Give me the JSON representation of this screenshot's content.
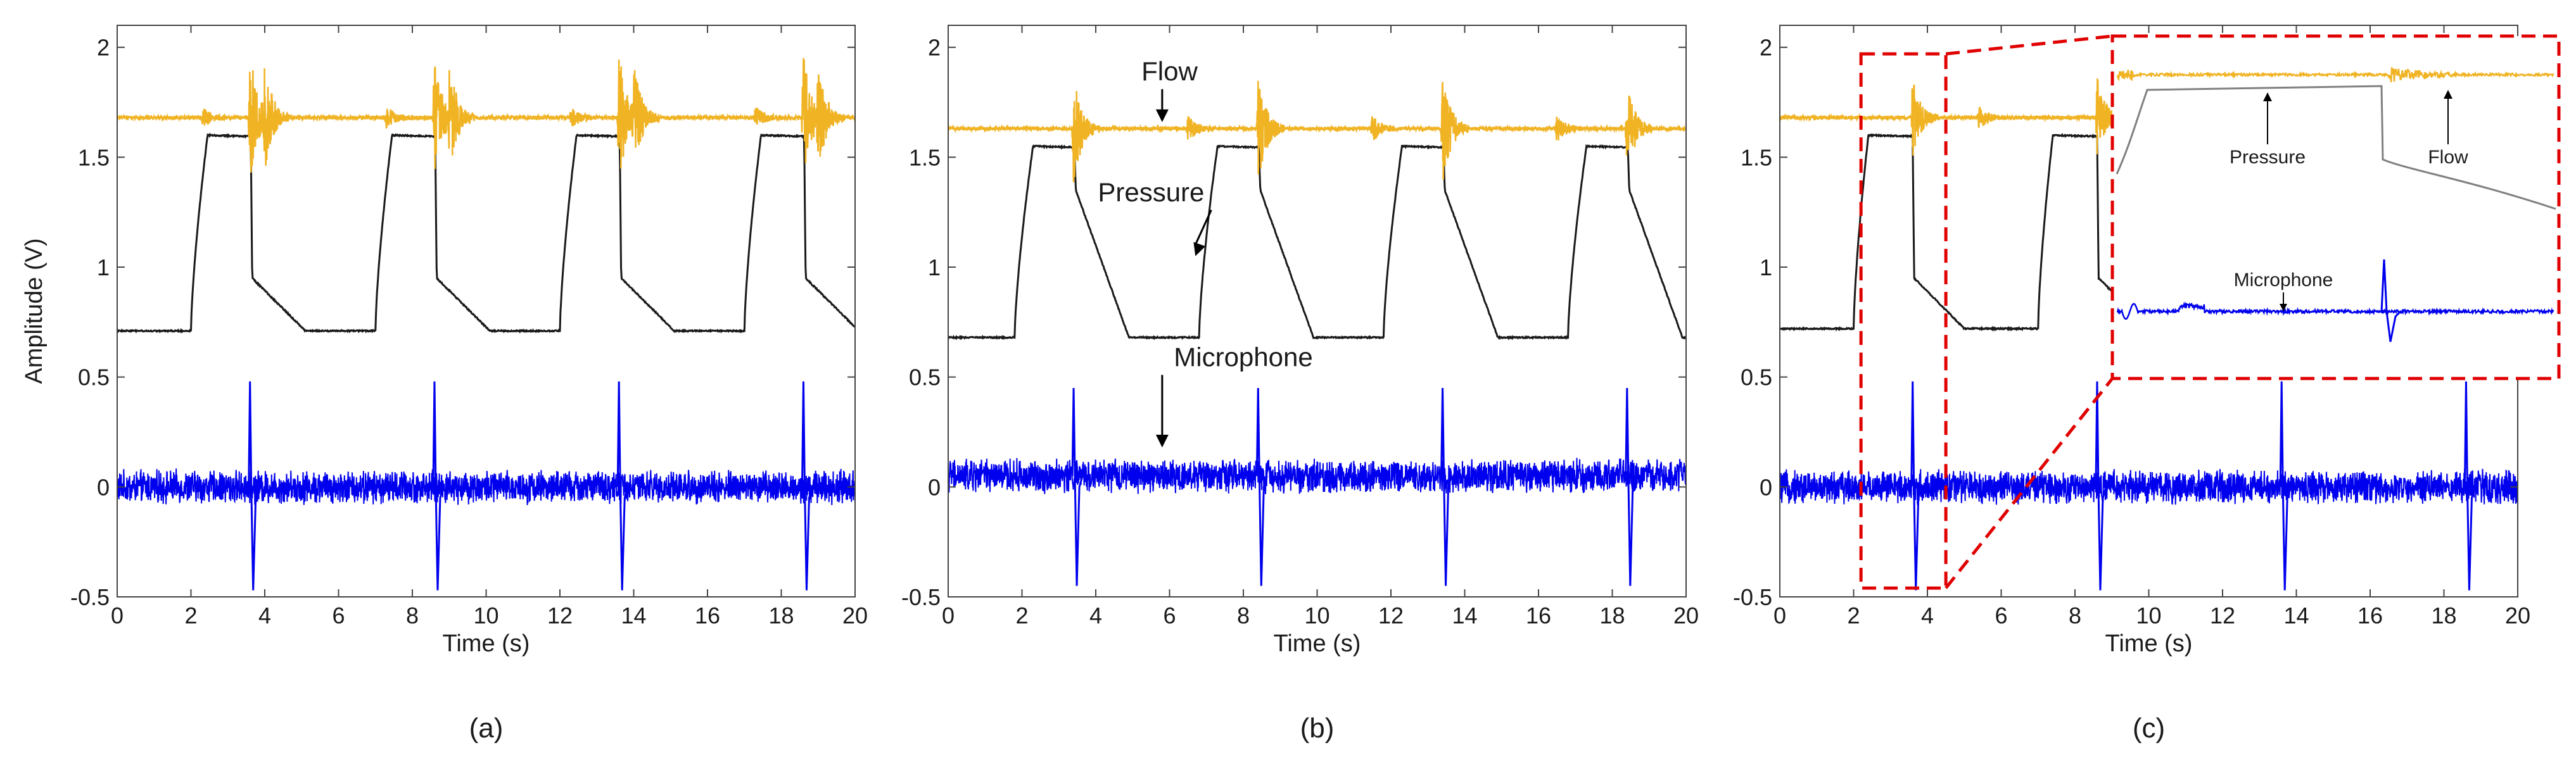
{
  "chart_data": [
    {
      "type": "line",
      "panel_label": "(a)",
      "xlabel": "Time (s)",
      "ylabel": "Amplitude (V)",
      "xlim": [
        0,
        20
      ],
      "ylim": [
        -0.5,
        2.1
      ],
      "x_ticks": [
        0,
        2,
        4,
        6,
        8,
        10,
        12,
        14,
        16,
        18,
        20
      ],
      "y_ticks": [
        -0.5,
        0,
        0.5,
        1,
        1.5,
        2
      ],
      "y_tick_labels": [
        "-0.5",
        "0",
        "0.5",
        "1",
        "1.5",
        "2"
      ],
      "grid": false,
      "cycle_starts": [
        2.0,
        7.0,
        12.0,
        17.0
      ],
      "series": [
        {
          "name": "Flow",
          "color": "#f0b323",
          "baseline": 1.68,
          "noise": 0.008,
          "burst_times": [
            2.3,
            3.6,
            4.0,
            7.3,
            8.6,
            9.0,
            12.3,
            13.6,
            14.0,
            17.3,
            18.6,
            19.0
          ],
          "burst_amps": [
            0.05,
            0.3,
            0.2,
            0.05,
            0.3,
            0.2,
            0.05,
            0.3,
            0.2,
            0.05,
            0.3,
            0.2
          ]
        },
        {
          "name": "Pressure",
          "color": "#1a1a1a",
          "low": 0.71,
          "high": 1.6,
          "rise_start": 2.0,
          "rise_end": 2.45,
          "fall_time": 3.62,
          "drop_to": 0.95,
          "decay_end": 5.1
        },
        {
          "name": "Microphone",
          "color": "#0000ee",
          "baseline": 0.0,
          "noise": 0.06,
          "spike_times": [
            3.6,
            8.6,
            13.6,
            18.6
          ],
          "spike_up": 0.48,
          "spike_down": -0.47
        }
      ]
    },
    {
      "type": "line",
      "panel_label": "(b)",
      "xlabel": "Time (s)",
      "xlim": [
        0,
        20
      ],
      "ylim": [
        -0.5,
        2.1
      ],
      "x_ticks": [
        0,
        2,
        4,
        6,
        8,
        10,
        12,
        14,
        16,
        18,
        20
      ],
      "y_ticks": [
        -0.5,
        0,
        0.5,
        1,
        1.5,
        2
      ],
      "y_tick_labels": [
        "-0.5",
        "0",
        "0.5",
        "1",
        "1.5",
        "2"
      ],
      "grid": false,
      "cycle_starts": [
        1.8,
        6.8,
        11.8,
        16.8
      ],
      "series": [
        {
          "name": "Flow",
          "color": "#f0b323",
          "baseline": 1.63,
          "noise": 0.008,
          "burst_times": [
            3.4,
            8.4,
            13.4,
            18.4,
            6.5,
            11.5,
            16.5
          ],
          "burst_amps": [
            0.25,
            0.25,
            0.25,
            0.2,
            0.06,
            0.06,
            0.06
          ]
        },
        {
          "name": "Pressure",
          "color": "#1a1a1a",
          "low": 0.68,
          "high": 1.55,
          "rise_start": 1.8,
          "rise_end": 2.3,
          "fall_time": 3.42,
          "drop_to": 1.35,
          "decay_end": 4.9
        },
        {
          "name": "Microphone",
          "color": "#0000ee",
          "baseline": 0.05,
          "noise": 0.06,
          "spike_times": [
            3.4,
            8.4,
            13.4,
            18.4
          ],
          "spike_up": 0.45,
          "spike_down": -0.45
        }
      ],
      "annotations": [
        {
          "text": "Flow",
          "x": 6.0,
          "y": 1.85,
          "arrow_to": [
            5.8,
            1.66
          ]
        },
        {
          "text": "Pressure",
          "x": 5.5,
          "y": 1.3,
          "arrow_to": [
            6.7,
            1.05
          ]
        },
        {
          "text": "Microphone",
          "x": 8.0,
          "y": 0.55,
          "arrow_to": [
            5.8,
            0.18
          ]
        }
      ]
    },
    {
      "type": "line",
      "panel_label": "(c)",
      "xlabel": "Time (s)",
      "xlim": [
        0,
        20
      ],
      "ylim": [
        -0.5,
        2.1
      ],
      "x_ticks": [
        0,
        2,
        4,
        6,
        8,
        10,
        12,
        14,
        16,
        18,
        20
      ],
      "y_ticks": [
        -0.5,
        0,
        0.5,
        1,
        1.5,
        2
      ],
      "y_tick_labels": [
        "-0.5",
        "0",
        "0.5",
        "1",
        "1.5",
        "2"
      ],
      "grid": false,
      "cycle_starts": [
        2.0,
        7.0
      ],
      "series": [
        {
          "name": "Flow",
          "color": "#f0b323",
          "baseline": 1.68,
          "noise": 0.008,
          "burst_times": [
            3.6,
            8.6,
            5.4
          ],
          "burst_amps": [
            0.18,
            0.18,
            0.05
          ]
        },
        {
          "name": "Pressure",
          "color": "#1a1a1a",
          "low": 0.72,
          "high": 1.6,
          "rise_start": 2.0,
          "rise_end": 2.4,
          "fall_time": 3.6,
          "drop_to": 0.95,
          "decay_end": 5.0
        },
        {
          "name": "Microphone",
          "color": "#0000ee",
          "baseline": 0.0,
          "noise": 0.06,
          "spike_times": [
            3.6,
            8.6,
            13.6,
            18.6
          ],
          "spike_up": 0.48,
          "spike_down": -0.47
        }
      ],
      "zoom_box": {
        "x": [
          2.2,
          4.5
        ],
        "y": [
          -0.46,
          1.97
        ]
      },
      "inset": {
        "labels": [
          "Pressure",
          "Flow",
          "Microphone"
        ],
        "pressure_color": "#808080",
        "flow_color": "#f0b323",
        "mic_color": "#0000ee"
      }
    }
  ]
}
